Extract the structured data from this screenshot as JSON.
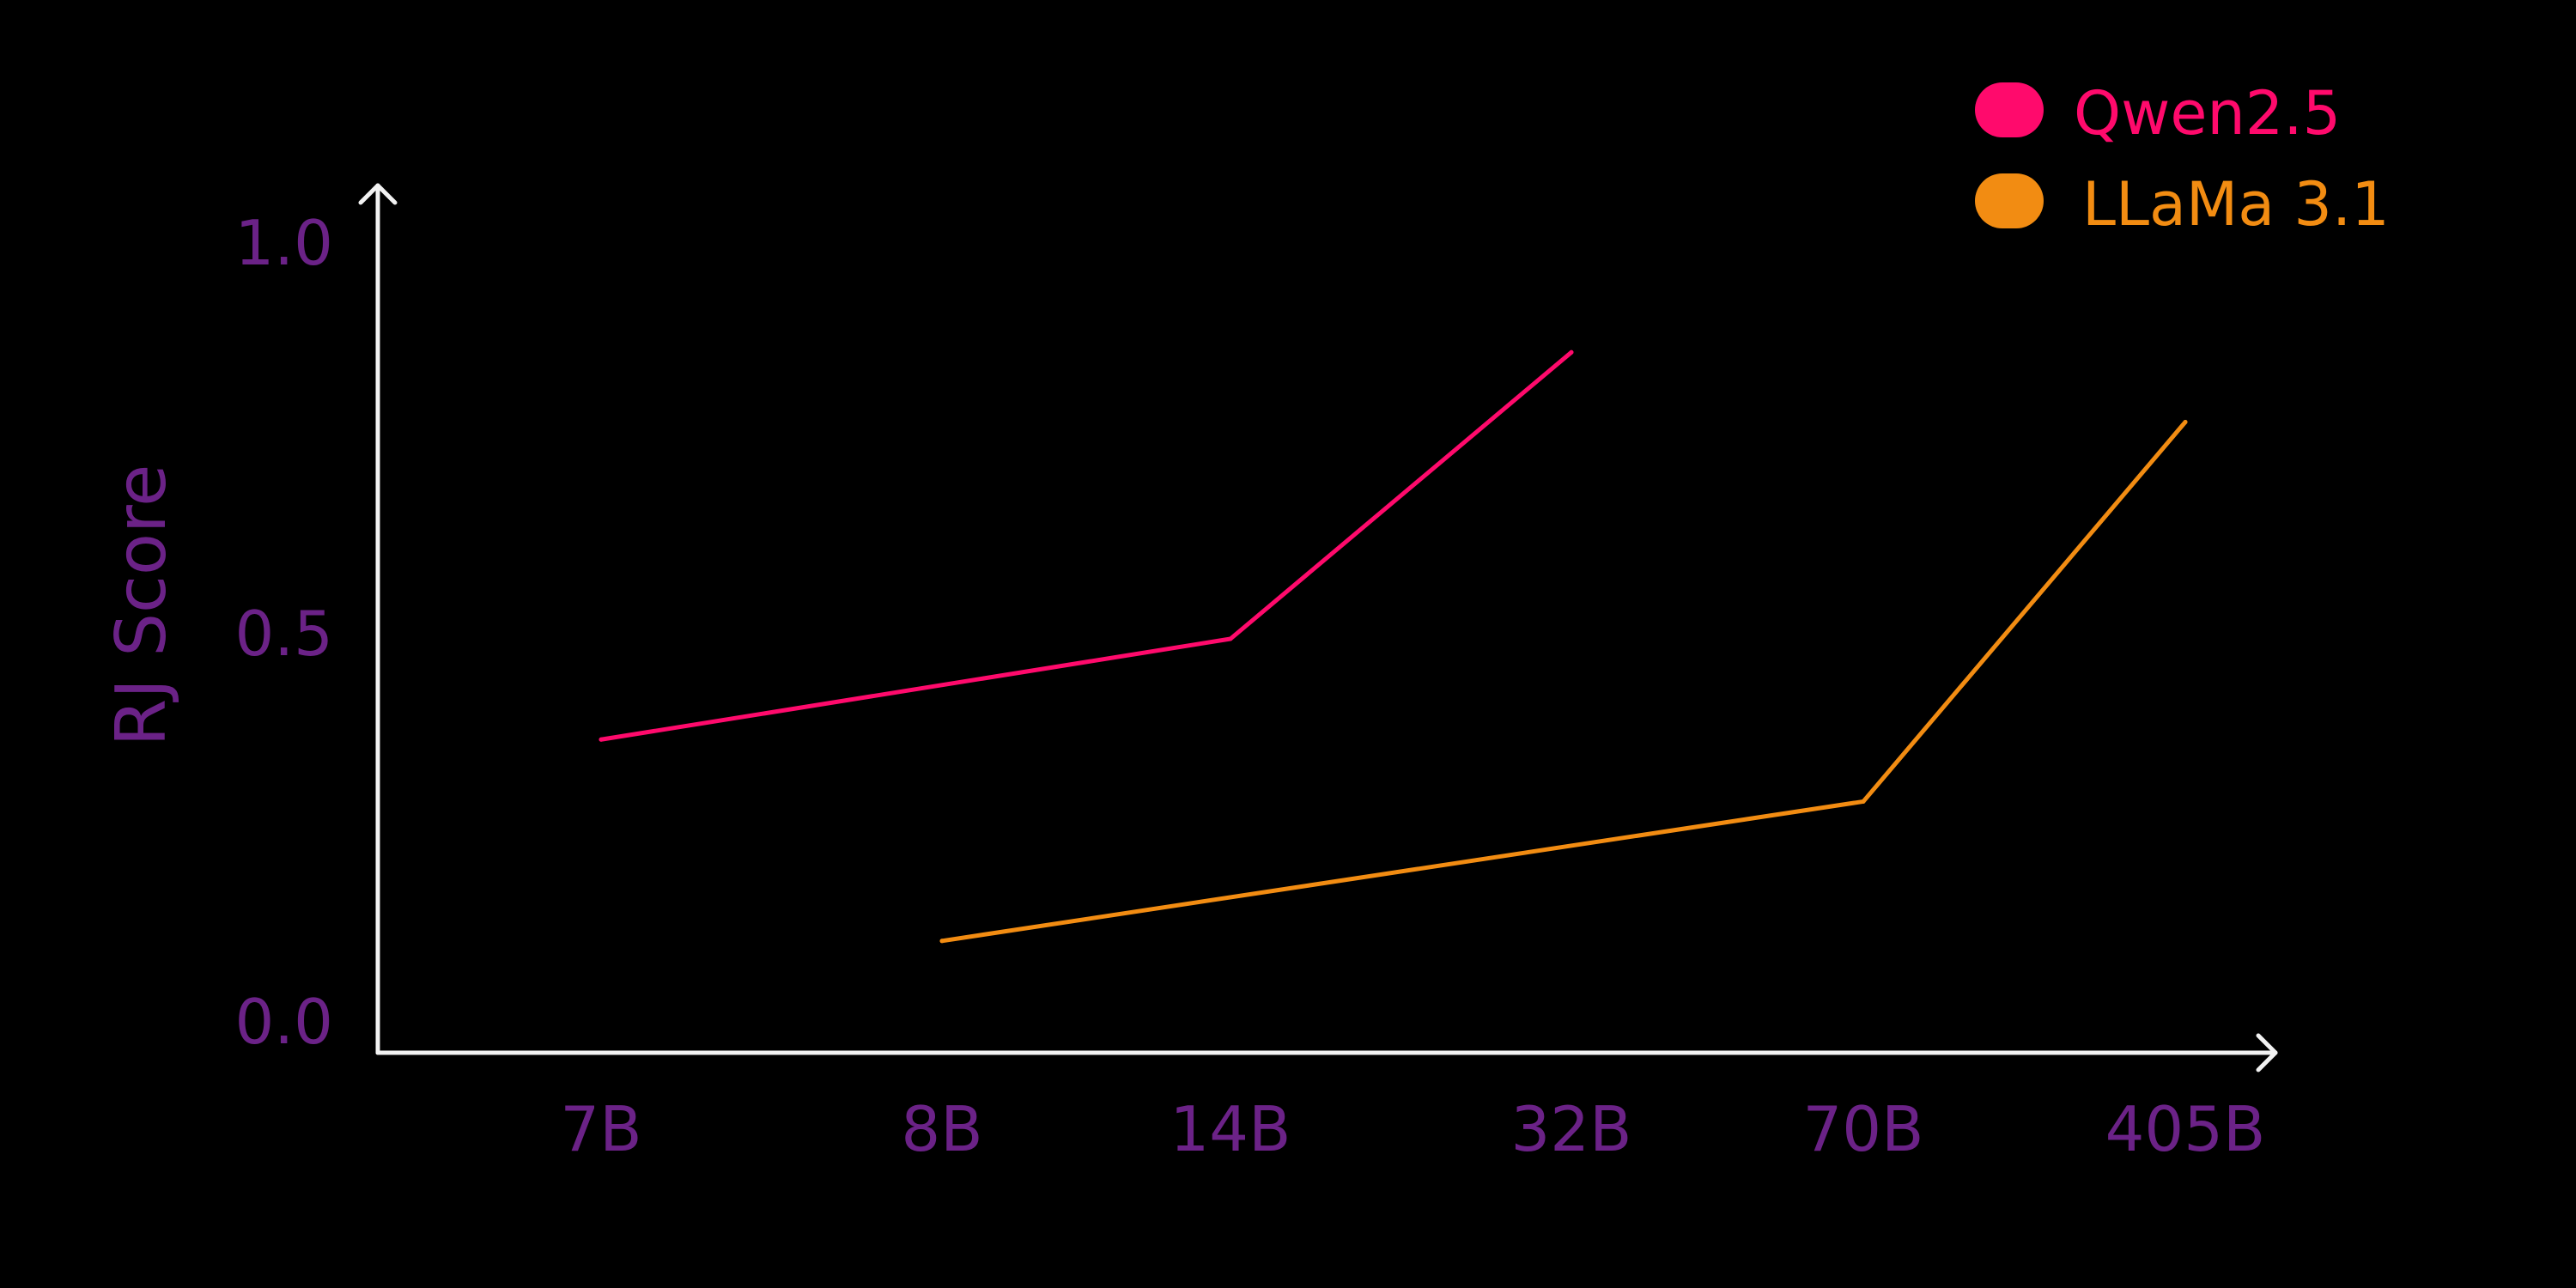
{
  "colors": {
    "background": "#000000",
    "axis": "#f2f2f2",
    "label": "#6b2287",
    "qwen": "#ff0a6c",
    "llama": "#f28c12"
  },
  "chart_data": {
    "type": "line",
    "ylabel": "RJ Score",
    "xlabel": "",
    "ylim": [
      0.0,
      1.1
    ],
    "yticks": [
      "1.0",
      "0.5",
      "0.0"
    ],
    "categories": [
      "7B",
      "8B",
      "14B",
      "32B",
      "70B",
      "405B"
    ],
    "grid": false,
    "legend_position": "top-right",
    "series": [
      {
        "name": "Qwen2.5",
        "color": "#ff0a6c",
        "points": [
          {
            "x": "7B",
            "y": 0.36
          },
          {
            "x": "14B",
            "y": 0.49
          },
          {
            "x": "32B",
            "y": 0.86
          }
        ]
      },
      {
        "name": "LLaMa 3.1",
        "color": "#f28c12",
        "points": [
          {
            "x": "8B",
            "y": 0.1
          },
          {
            "x": "70B",
            "y": 0.28
          },
          {
            "x": "405B",
            "y": 0.77
          }
        ]
      }
    ]
  }
}
